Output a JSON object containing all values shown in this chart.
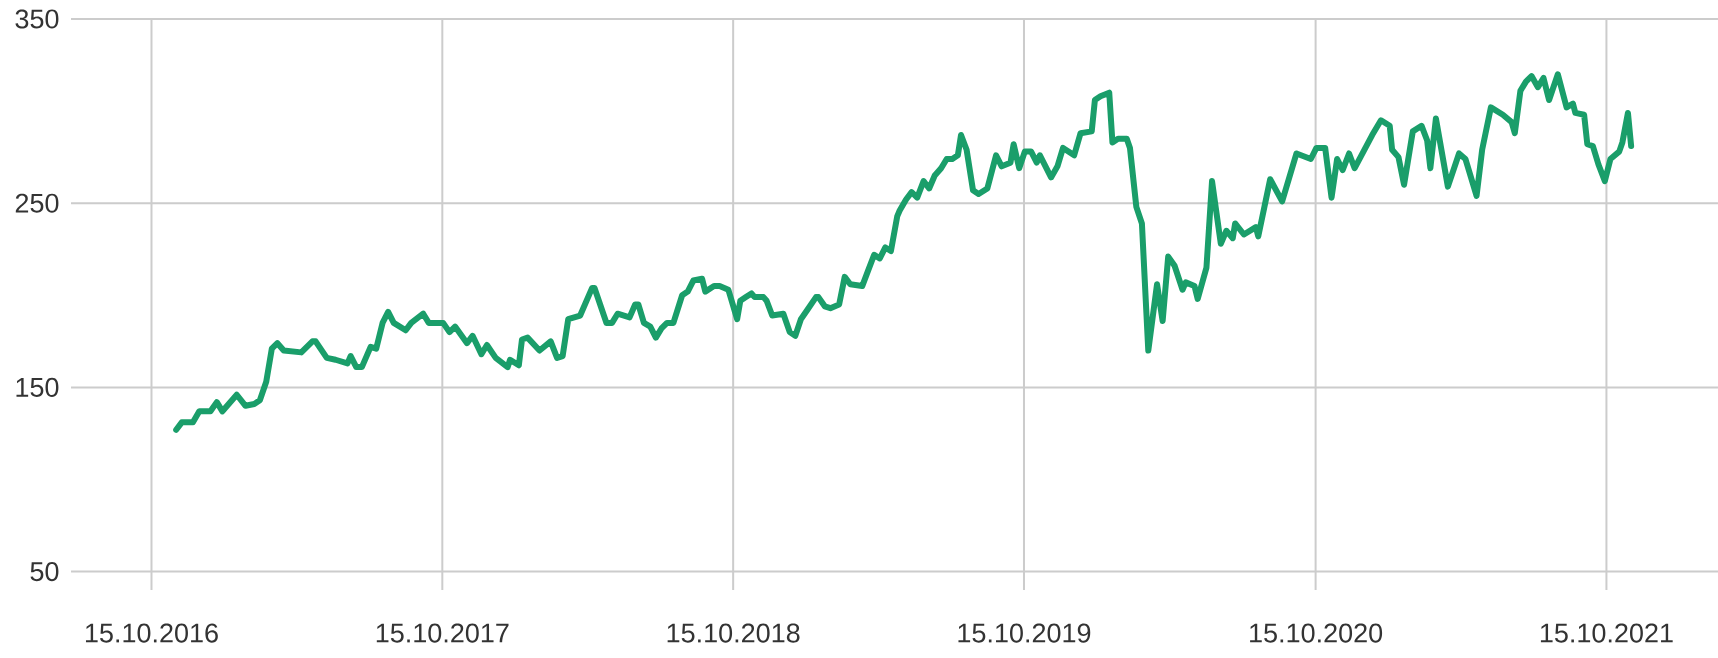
{
  "chart_data": {
    "type": "line",
    "grid": true,
    "xlim": [
      "2016-07-06",
      "2022-03-04"
    ],
    "ylim": [
      40,
      350
    ],
    "xticks": [
      {
        "value": "2016-10-15",
        "label": "15.10.2016"
      },
      {
        "value": "2017-10-15",
        "label": "15.10.2017"
      },
      {
        "value": "2018-10-15",
        "label": "15.10.2018"
      },
      {
        "value": "2019-10-15",
        "label": "15.10.2019"
      },
      {
        "value": "2020-10-15",
        "label": "15.10.2020"
      },
      {
        "value": "2021-10-15",
        "label": "15.10.2021"
      }
    ],
    "yticks": [
      50,
      150,
      250,
      350
    ],
    "x": [
      "2016-11-15",
      "2016-11-22",
      "2016-12-06",
      "2016-12-14",
      "2016-12-28",
      "2017-01-05",
      "2017-01-12",
      "2017-01-30",
      "2017-02-10",
      "2017-02-21",
      "2017-02-28",
      "2017-03-08",
      "2017-03-15",
      "2017-03-22",
      "2017-03-30",
      "2017-04-21",
      "2017-05-05",
      "2017-05-09",
      "2017-05-23",
      "2017-06-03",
      "2017-06-18",
      "2017-06-22",
      "2017-06-29",
      "2017-07-06",
      "2017-07-17",
      "2017-07-24",
      "2017-08-01",
      "2017-08-08",
      "2017-08-15",
      "2017-08-30",
      "2017-09-06",
      "2017-09-21",
      "2017-09-28",
      "2017-10-16",
      "2017-10-24",
      "2017-10-31",
      "2017-11-15",
      "2017-11-22",
      "2017-12-03",
      "2017-12-10",
      "2017-12-21",
      "2018-01-05",
      "2018-01-08",
      "2018-01-19",
      "2018-01-23",
      "2018-01-30",
      "2018-02-14",
      "2018-02-28",
      "2018-03-08",
      "2018-03-15",
      "2018-03-22",
      "2018-04-06",
      "2018-04-21",
      "2018-04-24",
      "2018-05-09",
      "2018-05-16",
      "2018-05-23",
      "2018-06-07",
      "2018-06-14",
      "2018-06-18",
      "2018-06-25",
      "2018-07-03",
      "2018-07-10",
      "2018-07-17",
      "2018-07-24",
      "2018-08-01",
      "2018-08-12",
      "2018-08-19",
      "2018-08-26",
      "2018-09-06",
      "2018-09-10",
      "2018-09-21",
      "2018-09-28",
      "2018-10-09",
      "2018-10-20",
      "2018-10-24",
      "2018-10-31",
      "2018-11-07",
      "2018-11-11",
      "2018-11-22",
      "2018-11-26",
      "2018-12-03",
      "2018-12-17",
      "2018-12-25",
      "2019-01-01",
      "2019-01-08",
      "2019-01-16",
      "2019-01-27",
      "2019-01-30",
      "2019-02-07",
      "2019-02-14",
      "2019-02-25",
      "2019-03-04",
      "2019-03-11",
      "2019-03-26",
      "2019-04-02",
      "2019-04-10",
      "2019-04-17",
      "2019-04-24",
      "2019-05-01",
      "2019-05-09",
      "2019-05-12",
      "2019-05-20",
      "2019-05-27",
      "2019-06-03",
      "2019-06-11",
      "2019-06-18",
      "2019-06-25",
      "2019-07-03",
      "2019-07-10",
      "2019-07-17",
      "2019-07-24",
      "2019-07-28",
      "2019-08-04",
      "2019-08-12",
      "2019-08-19",
      "2019-08-30",
      "2019-09-10",
      "2019-09-17",
      "2019-09-28",
      "2019-10-02",
      "2019-10-09",
      "2019-10-16",
      "2019-10-24",
      "2019-10-31",
      "2019-11-04",
      "2019-11-18",
      "2019-11-26",
      "2019-12-03",
      "2019-12-17",
      "2019-12-25",
      "2020-01-08",
      "2020-01-12",
      "2020-01-19",
      "2020-01-30",
      "2020-02-03",
      "2020-02-10",
      "2020-02-21",
      "2020-02-25",
      "2020-03-04",
      "2020-03-11",
      "2020-03-19",
      "2020-03-30",
      "2020-04-06",
      "2020-04-13",
      "2020-04-21",
      "2020-05-01",
      "2020-05-05",
      "2020-05-16",
      "2020-05-20",
      "2020-05-31",
      "2020-06-07",
      "2020-06-18",
      "2020-06-25",
      "2020-07-03",
      "2020-07-06",
      "2020-07-17",
      "2020-08-01",
      "2020-08-04",
      "2020-08-19",
      "2020-09-03",
      "2020-09-21",
      "2020-10-09",
      "2020-10-16",
      "2020-10-27",
      "2020-11-04",
      "2020-11-11",
      "2020-11-18",
      "2020-11-26",
      "2020-12-03",
      "2020-12-25",
      "2021-01-05",
      "2021-01-16",
      "2021-01-19",
      "2021-01-27",
      "2021-02-03",
      "2021-02-14",
      "2021-02-25",
      "2021-03-04",
      "2021-03-08",
      "2021-03-15",
      "2021-03-30",
      "2021-04-13",
      "2021-04-21",
      "2021-05-05",
      "2021-05-12",
      "2021-05-23",
      "2021-06-07",
      "2021-06-18",
      "2021-06-22",
      "2021-06-29",
      "2021-07-06",
      "2021-07-13",
      "2021-07-21",
      "2021-07-28",
      "2021-08-04",
      "2021-08-15",
      "2021-08-26",
      "2021-09-03",
      "2021-09-06",
      "2021-09-17",
      "2021-09-21",
      "2021-09-28",
      "2021-10-05",
      "2021-10-13",
      "2021-10-20",
      "2021-10-31",
      "2021-11-04",
      "2021-11-11",
      "2021-11-15"
    ],
    "series": [
      {
        "color": "#1a9e6a",
        "values": [
          127,
          131,
          131,
          137,
          137,
          142,
          137,
          146,
          140,
          141,
          143,
          153,
          171,
          174,
          170,
          169,
          175,
          175,
          166,
          165,
          163,
          167,
          161,
          161,
          172,
          171,
          185,
          191,
          185,
          181,
          185,
          190,
          185,
          185,
          180,
          183,
          174,
          178,
          168,
          173,
          166,
          161,
          165,
          162,
          176,
          177,
          170,
          175,
          166,
          167,
          187,
          189,
          204,
          204,
          185,
          185,
          190,
          188,
          195,
          195,
          185,
          183,
          177,
          182,
          185,
          185,
          200,
          202,
          208,
          209,
          202,
          205,
          205,
          203,
          187,
          197,
          199,
          201,
          199,
          199,
          197,
          189,
          190,
          180,
          178,
          187,
          192,
          199,
          199,
          194,
          193,
          195,
          210,
          206,
          205,
          213,
          222,
          220,
          226,
          224,
          243,
          246,
          252,
          256,
          253,
          262,
          258,
          265,
          269,
          274,
          274,
          276,
          287,
          279,
          257,
          255,
          258,
          276,
          270,
          272,
          282,
          269,
          278,
          278,
          272,
          276,
          264,
          270,
          280,
          276,
          288,
          289,
          306,
          308,
          310,
          283,
          285,
          285,
          280,
          248,
          239,
          170,
          206,
          186,
          221,
          216,
          203,
          207,
          205,
          198,
          215,
          262,
          228,
          235,
          231,
          239,
          233,
          237,
          232,
          263,
          251,
          277,
          274,
          280,
          280,
          253,
          274,
          268,
          277,
          269,
          287,
          295,
          292,
          279,
          275,
          260,
          289,
          292,
          284,
          269,
          296,
          259,
          277,
          274,
          254,
          279,
          302,
          298,
          294,
          288,
          311,
          316,
          319,
          313,
          318,
          306,
          320,
          302,
          304,
          299,
          298,
          282,
          281,
          271,
          262,
          274,
          278,
          283,
          299,
          281
        ]
      }
    ]
  }
}
